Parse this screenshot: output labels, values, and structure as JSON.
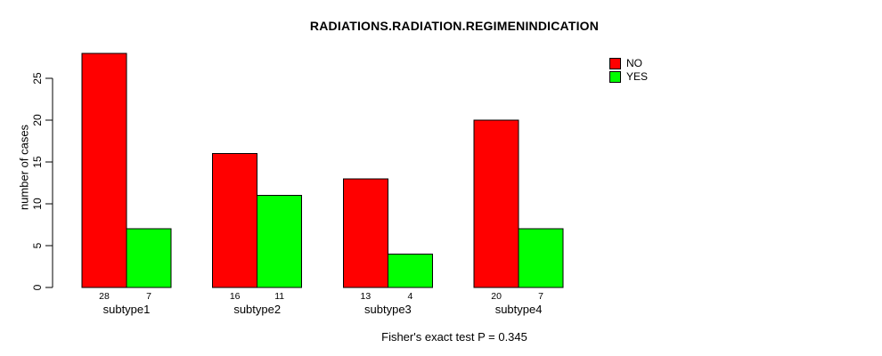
{
  "page": {
    "background": "#FFFFFF"
  },
  "chart_data": {
    "type": "bar",
    "title": "RADIATIONS.RADIATION.REGIMENINDICATION",
    "xlabel": "",
    "ylabel": "number of cases",
    "categories": [
      "subtype1",
      "subtype2",
      "subtype3",
      "subtype4"
    ],
    "series": [
      {
        "name": "NO",
        "color": "#FF0000",
        "values": [
          28,
          16,
          13,
          20
        ]
      },
      {
        "name": "YES",
        "color": "#00FF00",
        "values": [
          7,
          11,
          4,
          7
        ]
      }
    ],
    "bar_value_labels_shown": true,
    "bar_border_color": "#000000",
    "ylim": [
      0,
      28
    ],
    "yticks": [
      0,
      5,
      10,
      15,
      20,
      25
    ],
    "grid": false,
    "legend_position": "topright",
    "annotation": "Fisher's exact test P = 0.345"
  }
}
